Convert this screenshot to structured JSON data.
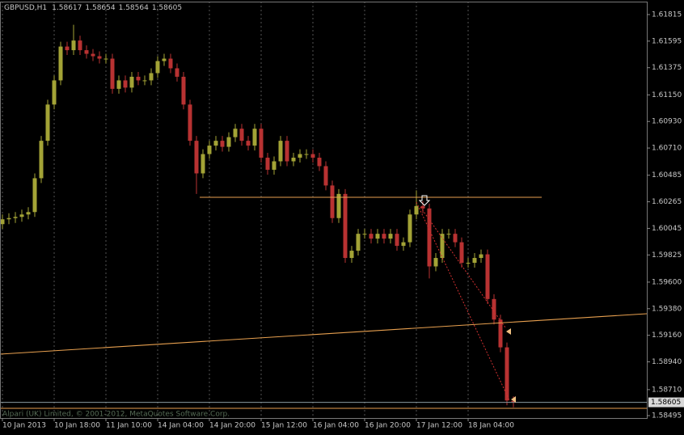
{
  "chart_data": {
    "type": "candlestick",
    "symbol": "GBPUSD,H1",
    "copyright": "Alpari (UK) Limited, © 2001-2012, MetaQuotes Software Corp.",
    "up_color": "#a3a336",
    "down_color": "#b83232",
    "ylim": [
      1.58475,
      1.61922
    ],
    "yticks": [
      1.61815,
      1.61595,
      1.61375,
      {
        "value": 1.6115,
        "label": "1.61150"
      },
      {
        "value": 1.6093,
        "label": "1.60930"
      },
      {
        "value": 1.6071,
        "label": "1.60710"
      },
      1.60485,
      1.60265,
      1.60045,
      1.59825,
      {
        "value": 1.596,
        "label": "1.59600"
      },
      {
        "value": 1.5938,
        "label": "1.59380"
      },
      {
        "value": 1.5916,
        "label": "1.59160"
      },
      {
        "value": 1.5894,
        "label": "1.58940"
      },
      {
        "value": 1.5871,
        "label": "1.58710"
      },
      1.58495
    ],
    "xticks": [
      {
        "value": 0,
        "label": "10 Jan 2013"
      },
      {
        "value": 8,
        "label": "10 Jan 18:00"
      },
      {
        "value": 16,
        "label": "11 Jan 10:00"
      },
      {
        "value": 24,
        "label": "14 Jan 04:00"
      },
      {
        "value": 32,
        "label": "14 Jan 20:00"
      },
      {
        "value": 40,
        "label": "15 Jan 12:00"
      },
      {
        "value": 48,
        "label": "16 Jan 04:00"
      },
      {
        "value": 56,
        "label": "16 Jan 20:00"
      },
      {
        "value": 64,
        "label": "17 Jan 12:00"
      },
      {
        "value": 72,
        "label": "18 Jan 04:00"
      }
    ],
    "grid": true,
    "open": [
      1.6008,
      1.6012,
      1.6013,
      1.6014,
      1.6016,
      1.6018,
      1.6046,
      1.6077,
      1.6107,
      1.6127,
      1.6155,
      1.6152,
      1.616,
      1.6152,
      1.6149,
      1.6147,
      1.6145,
      1.6145,
      1.612,
      1.6127,
      1.6121,
      1.613,
      1.6127,
      1.6127,
      1.6133,
      1.6143,
      1.6145,
      1.6137,
      1.613,
      1.6107,
      1.6077,
      1.605,
      1.6066,
      1.6073,
      1.6077,
      1.6072,
      1.608,
      1.6087,
      1.6077,
      1.6073,
      1.6087,
      1.6063,
      1.6053,
      1.606,
      1.6077,
      1.606,
      1.6063,
      1.6066,
      1.6066,
      1.6063,
      1.6056,
      1.604,
      1.6013,
      1.6033,
      1.598,
      1.5986,
      1.6,
      1.6,
      1.5996,
      1.6,
      1.5996,
      1.6,
      1.599,
      1.5993,
      1.6016,
      1.6023,
      1.6021,
      1.5973,
      1.598,
      1.6,
      1.6,
      1.5993,
      1.5976,
      1.5976,
      1.598,
      1.5983,
      1.5946,
      1.5929,
      1.5906,
      1.58617
    ],
    "high": [
      1.6016,
      1.6017,
      1.6018,
      1.602,
      1.6022,
      1.605,
      1.6081,
      1.6111,
      1.6131,
      1.6159,
      1.6159,
      1.6173,
      1.6164,
      1.6156,
      1.6153,
      1.6151,
      1.6149,
      1.6149,
      1.6131,
      1.6131,
      1.6134,
      1.6134,
      1.6131,
      1.6137,
      1.6147,
      1.6149,
      1.6149,
      1.6141,
      1.6134,
      1.6111,
      1.6081,
      1.607,
      1.6077,
      1.6081,
      1.6081,
      1.6084,
      1.6091,
      1.6091,
      1.6081,
      1.6091,
      1.6091,
      1.6067,
      1.6064,
      1.6081,
      1.6081,
      1.6067,
      1.607,
      1.607,
      1.607,
      1.6067,
      1.606,
      1.6044,
      1.6037,
      1.6037,
      1.599,
      1.6004,
      1.6004,
      1.6004,
      1.6004,
      1.6004,
      1.6004,
      1.6004,
      1.5997,
      1.602,
      1.6036,
      1.6027,
      1.6025,
      1.5984,
      1.6004,
      1.6004,
      1.6004,
      1.5997,
      1.598,
      1.5984,
      1.5987,
      1.5987,
      1.595,
      1.5933,
      1.591,
      1.58654
    ],
    "low": [
      1.6004,
      1.6008,
      1.6009,
      1.601,
      1.6012,
      1.6014,
      1.6042,
      1.6073,
      1.6103,
      1.6123,
      1.6148,
      1.6148,
      1.6148,
      1.6145,
      1.6143,
      1.6141,
      1.6141,
      1.6116,
      1.6116,
      1.6117,
      1.6117,
      1.6123,
      1.6123,
      1.6123,
      1.6129,
      1.6139,
      1.6133,
      1.6126,
      1.6103,
      1.6073,
      1.6033,
      1.6046,
      1.6062,
      1.6069,
      1.6068,
      1.6068,
      1.6076,
      1.6073,
      1.6069,
      1.6069,
      1.6059,
      1.6049,
      1.6049,
      1.6056,
      1.6056,
      1.6056,
      1.6059,
      1.6062,
      1.6059,
      1.6052,
      1.6036,
      1.6009,
      1.6009,
      1.5976,
      1.5976,
      1.5982,
      1.5996,
      1.5992,
      1.5992,
      1.5992,
      1.5992,
      1.5986,
      1.5986,
      1.5989,
      1.6012,
      1.6017,
      1.5963,
      1.5969,
      1.5976,
      1.5996,
      1.5989,
      1.5972,
      1.5972,
      1.5972,
      1.5976,
      1.5942,
      1.5925,
      1.5902,
      1.5858,
      1.58564
    ],
    "close": [
      1.6012,
      1.6013,
      1.6014,
      1.6016,
      1.6018,
      1.6046,
      1.6077,
      1.6107,
      1.6127,
      1.6155,
      1.6152,
      1.616,
      1.6152,
      1.6149,
      1.6147,
      1.6145,
      1.6145,
      1.612,
      1.6127,
      1.6121,
      1.613,
      1.6127,
      1.6127,
      1.6133,
      1.6143,
      1.6145,
      1.6137,
      1.613,
      1.6107,
      1.6077,
      1.605,
      1.6066,
      1.6073,
      1.6077,
      1.6072,
      1.608,
      1.6087,
      1.6077,
      1.6073,
      1.6087,
      1.6063,
      1.6053,
      1.606,
      1.6077,
      1.606,
      1.6063,
      1.6066,
      1.6066,
      1.6063,
      1.6056,
      1.604,
      1.6013,
      1.6033,
      1.598,
      1.5986,
      1.6,
      1.6,
      1.5996,
      1.6,
      1.5996,
      1.6,
      1.599,
      1.5993,
      1.6016,
      1.6023,
      1.6021,
      1.5973,
      1.598,
      1.6,
      1.6,
      1.5993,
      1.5976,
      1.5976,
      1.598,
      1.5983,
      1.5946,
      1.5929,
      1.5906,
      1.5862,
      1.58605
    ]
  }
}
